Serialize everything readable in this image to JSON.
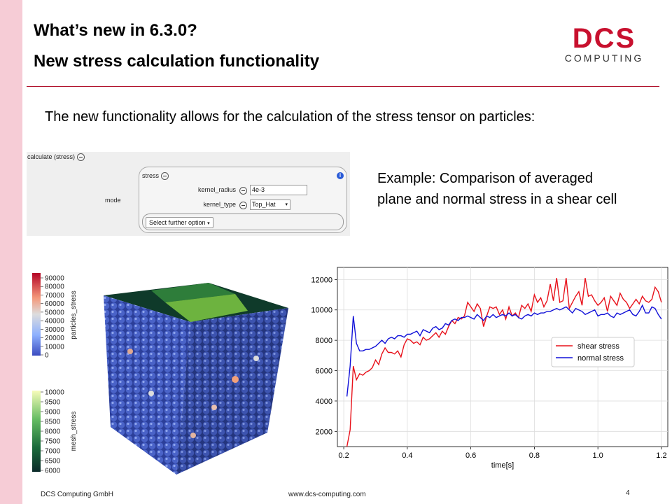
{
  "slide": {
    "title": "What’s new in 6.3.0?",
    "subtitle": "New stress calculation functionality",
    "intro": "The new functionality allows for the calculation of the stress tensor on particles:",
    "example_line1": "Example: Comparison of averaged",
    "example_line2": "plane and normal stress in a shear cell",
    "page_number": "4"
  },
  "logo": {
    "top": "DCS",
    "bottom": "COMPUTING",
    "color": "#c8102e"
  },
  "footer": {
    "company": "DCS Computing GmbH",
    "website": "www.dcs-computing.com"
  },
  "panel": {
    "header": "calculate (stress)",
    "mode_label": "mode",
    "stress_label": "stress",
    "kernel_radius_label": "kernel_radius",
    "kernel_radius_value": "4e-3",
    "kernel_type_label": "kernel_type",
    "kernel_type_value": "Top_Hat",
    "further_option": "Select further option"
  },
  "colorbars": {
    "particles": {
      "title": "particles_stress",
      "ticks": [
        "90000",
        "80000",
        "70000",
        "60000",
        "50000",
        "40000",
        "30000",
        "20000",
        "10000",
        "0"
      ]
    },
    "mesh": {
      "title": "mesh_stress",
      "ticks": [
        "10000",
        "9500",
        "9000",
        "8500",
        "8000",
        "7500",
        "7000",
        "6500",
        "6000"
      ]
    }
  },
  "colors": {
    "shear": "#e8111a",
    "normal": "#1010d8",
    "accent": "#b0102a"
  },
  "chart_data": {
    "type": "line",
    "xlabel": "time[s]",
    "ylabel": "",
    "xlim": [
      0.18,
      1.22
    ],
    "ylim": [
      1000,
      12800
    ],
    "xticks": [
      "0.2",
      "0.4",
      "0.6",
      "0.8",
      "1.0",
      "1.2"
    ],
    "yticks": [
      "2000",
      "4000",
      "6000",
      "8000",
      "10000",
      "12000"
    ],
    "grid": true,
    "legend_position": "right",
    "series": [
      {
        "name": "shear stress",
        "x": [
          0.21,
          0.22,
          0.23,
          0.24,
          0.25,
          0.26,
          0.27,
          0.28,
          0.29,
          0.3,
          0.31,
          0.32,
          0.33,
          0.34,
          0.35,
          0.36,
          0.37,
          0.38,
          0.39,
          0.4,
          0.41,
          0.42,
          0.43,
          0.44,
          0.45,
          0.46,
          0.47,
          0.48,
          0.49,
          0.5,
          0.51,
          0.52,
          0.53,
          0.54,
          0.55,
          0.56,
          0.57,
          0.58,
          0.59,
          0.6,
          0.61,
          0.62,
          0.63,
          0.64,
          0.65,
          0.66,
          0.67,
          0.68,
          0.69,
          0.7,
          0.71,
          0.72,
          0.73,
          0.74,
          0.75,
          0.76,
          0.77,
          0.78,
          0.79,
          0.8,
          0.81,
          0.82,
          0.83,
          0.84,
          0.85,
          0.86,
          0.87,
          0.88,
          0.89,
          0.9,
          0.91,
          0.92,
          0.93,
          0.94,
          0.95,
          0.96,
          0.97,
          0.98,
          0.99,
          1.0,
          1.01,
          1.02,
          1.03,
          1.04,
          1.05,
          1.06,
          1.07,
          1.08,
          1.09,
          1.1,
          1.11,
          1.12,
          1.13,
          1.14,
          1.15,
          1.16,
          1.17,
          1.18,
          1.19,
          1.2
        ],
        "values": [
          1000,
          2100,
          6300,
          5400,
          5800,
          5700,
          5900,
          6000,
          6200,
          6700,
          6400,
          7100,
          7500,
          7200,
          7200,
          7100,
          7300,
          6900,
          7700,
          8100,
          8000,
          7800,
          7900,
          7700,
          8200,
          8000,
          8100,
          8300,
          8500,
          8200,
          8600,
          8400,
          8900,
          9300,
          9100,
          9500,
          9400,
          9600,
          10500,
          10200,
          9900,
          10400,
          10100,
          8900,
          9600,
          10200,
          10100,
          10200,
          9700,
          10000,
          9400,
          10200,
          9600,
          9800,
          9500,
          10300,
          10100,
          10400,
          9900,
          11000,
          10500,
          10800,
          10200,
          10600,
          11700,
          10600,
          12100,
          10500,
          10600,
          12100,
          10100,
          10500,
          10900,
          11200,
          10300,
          12100,
          10900,
          11000,
          10600,
          10300,
          10500,
          10800,
          9900,
          10900,
          10600,
          10300,
          11100,
          10700,
          10500,
          10100,
          10400,
          10700,
          10400,
          10900,
          10600,
          10500,
          10700,
          11500,
          11200,
          10500
        ]
      },
      {
        "name": "normal stress",
        "x": [
          0.21,
          0.22,
          0.23,
          0.24,
          0.25,
          0.26,
          0.27,
          0.28,
          0.29,
          0.3,
          0.31,
          0.32,
          0.33,
          0.34,
          0.35,
          0.36,
          0.37,
          0.38,
          0.39,
          0.4,
          0.41,
          0.42,
          0.43,
          0.44,
          0.45,
          0.46,
          0.47,
          0.48,
          0.49,
          0.5,
          0.51,
          0.52,
          0.53,
          0.54,
          0.55,
          0.56,
          0.57,
          0.58,
          0.59,
          0.6,
          0.61,
          0.62,
          0.63,
          0.64,
          0.65,
          0.66,
          0.67,
          0.68,
          0.69,
          0.7,
          0.71,
          0.72,
          0.73,
          0.74,
          0.75,
          0.76,
          0.77,
          0.78,
          0.79,
          0.8,
          0.81,
          0.82,
          0.83,
          0.84,
          0.85,
          0.86,
          0.87,
          0.88,
          0.89,
          0.9,
          0.91,
          0.92,
          0.93,
          0.94,
          0.95,
          0.96,
          0.97,
          0.98,
          0.99,
          1.0,
          1.01,
          1.02,
          1.03,
          1.04,
          1.05,
          1.06,
          1.07,
          1.08,
          1.09,
          1.1,
          1.11,
          1.12,
          1.13,
          1.14,
          1.15,
          1.16,
          1.17,
          1.18,
          1.19,
          1.2
        ],
        "values": [
          4300,
          6300,
          9600,
          7800,
          7300,
          7300,
          7400,
          7400,
          7500,
          7600,
          7800,
          8000,
          7800,
          8100,
          8200,
          8100,
          8300,
          8300,
          8200,
          8400,
          8400,
          8500,
          8600,
          8300,
          8700,
          8600,
          8500,
          8800,
          8900,
          8700,
          8800,
          9100,
          9000,
          9300,
          9400,
          9300,
          9500,
          9500,
          9600,
          9500,
          9400,
          9700,
          9500,
          9300,
          9600,
          9500,
          9700,
          9500,
          9600,
          9700,
          9600,
          9800,
          9600,
          9700,
          9500,
          9400,
          9600,
          9700,
          9600,
          9800,
          9700,
          9800,
          9800,
          9900,
          9900,
          10000,
          10100,
          10000,
          10100,
          10200,
          10000,
          9800,
          10100,
          10000,
          9900,
          9700,
          9800,
          9900,
          10000,
          9600,
          9700,
          9700,
          9800,
          9600,
          9500,
          9800,
          9700,
          9800,
          9900,
          10000,
          9700,
          9600,
          9900,
          10300,
          9800,
          9800,
          10200,
          10100,
          9700,
          9400
        ]
      }
    ]
  }
}
